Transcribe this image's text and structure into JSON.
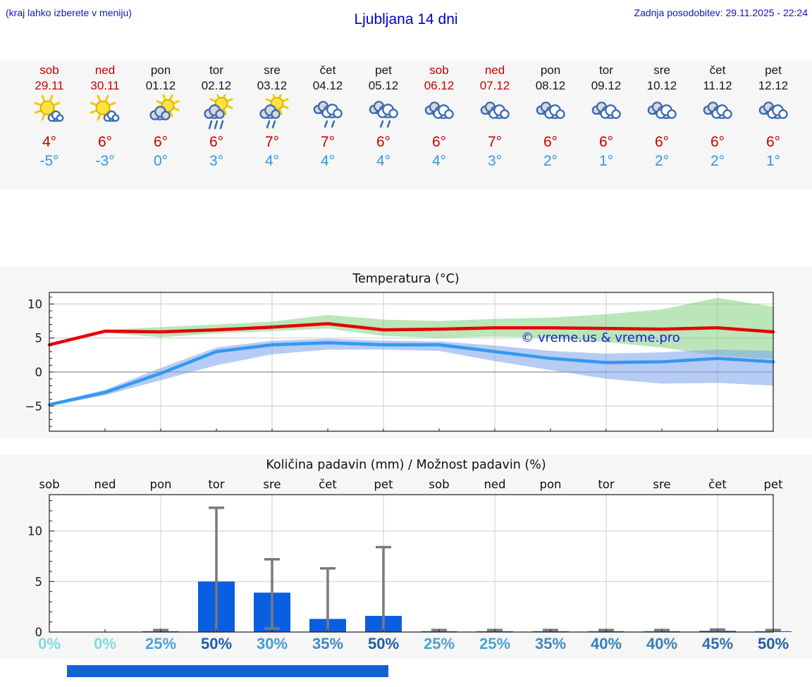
{
  "header": {
    "menu_hint": "(kraj lahko izberete v meniju)",
    "title": "Ljubljana 14 dni",
    "last_update": "Zadnja posodobitev: 29.11.2025 - 22:24"
  },
  "forecast": {
    "days": [
      {
        "name": "sob",
        "date": "29.11",
        "weekend": true,
        "icon": "sun-cloud",
        "tmax": "4°",
        "tmin": "-5°"
      },
      {
        "name": "ned",
        "date": "30.11",
        "weekend": true,
        "icon": "sun-cloud",
        "tmax": "6°",
        "tmin": "-3°"
      },
      {
        "name": "pon",
        "date": "01.12",
        "weekend": false,
        "icon": "cloud-sun",
        "tmax": "6°",
        "tmin": "0°"
      },
      {
        "name": "tor",
        "date": "02.12",
        "weekend": false,
        "icon": "sun-rain-heavy",
        "tmax": "6°",
        "tmin": "3°"
      },
      {
        "name": "sre",
        "date": "03.12",
        "weekend": false,
        "icon": "sun-rain",
        "tmax": "7°",
        "tmin": "4°"
      },
      {
        "name": "čet",
        "date": "04.12",
        "weekend": false,
        "icon": "clouds-rain",
        "tmax": "7°",
        "tmin": "4°"
      },
      {
        "name": "pet",
        "date": "05.12",
        "weekend": false,
        "icon": "clouds-rain",
        "tmax": "6°",
        "tmin": "4°"
      },
      {
        "name": "sob",
        "date": "06.12",
        "weekend": true,
        "icon": "cloudy",
        "tmax": "6°",
        "tmin": "4°"
      },
      {
        "name": "ned",
        "date": "07.12",
        "weekend": true,
        "icon": "cloudy",
        "tmax": "7°",
        "tmin": "3°"
      },
      {
        "name": "pon",
        "date": "08.12",
        "weekend": false,
        "icon": "cloudy",
        "tmax": "6°",
        "tmin": "2°"
      },
      {
        "name": "tor",
        "date": "09.12",
        "weekend": false,
        "icon": "cloudy",
        "tmax": "6°",
        "tmin": "1°"
      },
      {
        "name": "sre",
        "date": "10.12",
        "weekend": false,
        "icon": "cloudy",
        "tmax": "6°",
        "tmin": "2°"
      },
      {
        "name": "čet",
        "date": "11.12",
        "weekend": false,
        "icon": "cloudy",
        "tmax": "6°",
        "tmin": "2°"
      },
      {
        "name": "pet",
        "date": "12.12",
        "weekend": false,
        "icon": "cloudy",
        "tmax": "6°",
        "tmin": "1°"
      }
    ]
  },
  "chart_data": [
    {
      "type": "line",
      "title": "Temperatura (°C)",
      "x": [
        "29.11",
        "30.11",
        "01.12",
        "02.12",
        "03.12",
        "04.12",
        "05.12",
        "06.12",
        "07.12",
        "08.12",
        "09.12",
        "10.12",
        "11.12",
        "12.12"
      ],
      "ylim": [
        -8.7,
        11.7
      ],
      "yticks": [
        -5,
        0,
        5,
        10
      ],
      "grid_day_indices": [
        2,
        4,
        6,
        8,
        10,
        12
      ],
      "watermark": "© vreme.us & vreme.pro",
      "watermark_color": "#1b1bd8",
      "series": [
        {
          "name": "max temperature",
          "color": "#e60000",
          "values": [
            4.0,
            6.0,
            5.9,
            6.2,
            6.6,
            7.1,
            6.2,
            6.3,
            6.5,
            6.5,
            6.4,
            6.3,
            6.5,
            5.9
          ]
        },
        {
          "name": "min temperature",
          "color": "#3498f0",
          "values": [
            -4.8,
            -3.0,
            -0.2,
            3.0,
            4.0,
            4.3,
            4.0,
            4.0,
            3.0,
            2.0,
            1.4,
            1.5,
            2.0,
            1.5
          ]
        }
      ],
      "bands": [
        {
          "name": "max temperature uncertainty",
          "color": "rgba(118,205,118,0.5)",
          "hi": [
            4.1,
            6.2,
            6.6,
            7.0,
            7.4,
            8.4,
            7.7,
            7.5,
            7.8,
            8.0,
            8.5,
            9.2,
            10.9,
            9.6
          ],
          "lo": [
            3.9,
            5.8,
            5.1,
            5.7,
            6.0,
            6.4,
            5.3,
            5.0,
            5.2,
            5.0,
            4.4,
            3.6,
            2.4,
            1.9
          ]
        },
        {
          "name": "min temperature uncertainty",
          "color": "rgba(122,162,235,0.55)",
          "hi": [
            -4.6,
            -2.6,
            0.6,
            3.6,
            4.6,
            4.9,
            4.6,
            4.5,
            3.9,
            3.1,
            2.7,
            2.9,
            3.3,
            3.1
          ],
          "lo": [
            -5.0,
            -3.4,
            -1.2,
            1.0,
            2.6,
            3.3,
            3.3,
            3.1,
            1.6,
            0.3,
            -1.0,
            -1.7,
            -1.6,
            -2.0
          ]
        }
      ]
    },
    {
      "type": "bar",
      "title": "Količina padavin (mm) / Možnost padavin (%)",
      "categories": [
        "sob",
        "ned",
        "pon",
        "tor",
        "sre",
        "čet",
        "pet",
        "sob",
        "ned",
        "pon",
        "tor",
        "sre",
        "čet",
        "pet"
      ],
      "values": [
        0,
        0,
        0.08,
        5.0,
        3.9,
        1.3,
        1.6,
        0.08,
        0.08,
        0.08,
        0.08,
        0.08,
        0.12,
        0.08
      ],
      "err_lo": [
        0,
        0,
        0,
        0,
        0.35,
        0,
        0,
        0,
        0,
        0,
        0,
        0,
        0,
        0
      ],
      "err_hi": [
        0,
        0,
        0.2,
        12.3,
        7.2,
        6.3,
        8.4,
        0.2,
        0.2,
        0.2,
        0.2,
        0.2,
        0.25,
        0.2
      ],
      "ylim": [
        0,
        13.6
      ],
      "yticks": [
        0,
        5,
        10
      ],
      "grid_day_indices": [
        2,
        4,
        6,
        8,
        10,
        12
      ],
      "bar_color": "#0a5fe0",
      "error_color": "#7a7a7a",
      "probabilities": [
        "0%",
        "0%",
        "25%",
        "50%",
        "30%",
        "35%",
        "50%",
        "25%",
        "25%",
        "35%",
        "40%",
        "40%",
        "45%",
        "50%"
      ],
      "prob_colors": [
        "#82d9e3",
        "#82d9e3",
        "#4aa3d8",
        "#1c5ea7",
        "#429bd3",
        "#3a8cc8",
        "#1c5ea7",
        "#4aa3d8",
        "#4aa3d8",
        "#3a8cc8",
        "#3381c0",
        "#3381c0",
        "#2b73b6",
        "#1c5ea7"
      ]
    }
  ]
}
